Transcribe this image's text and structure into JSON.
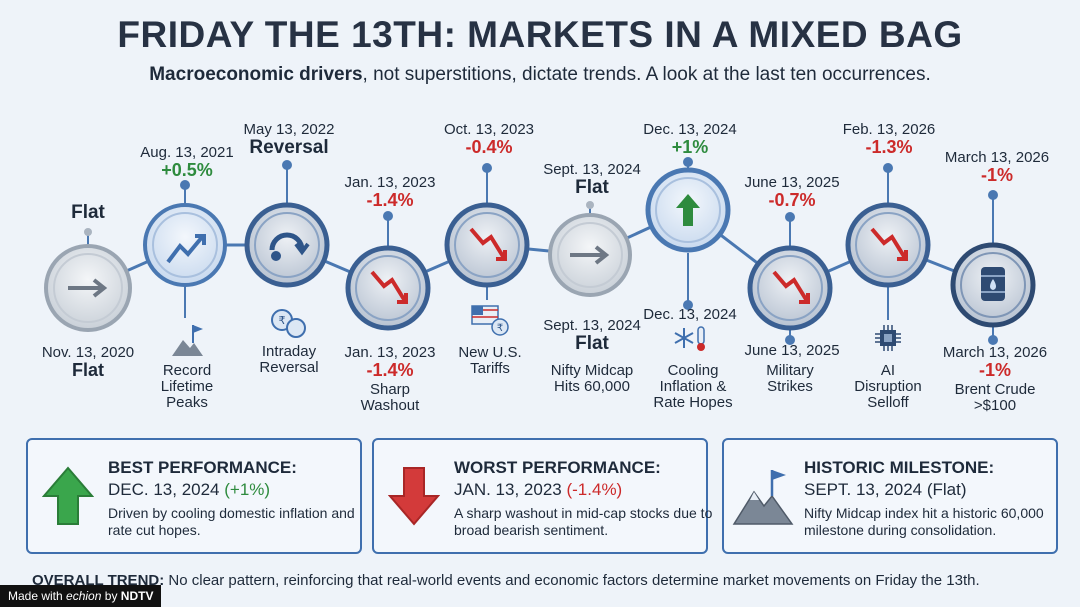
{
  "title": "FRIDAY THE 13TH: MARKETS IN A MIXED BAG",
  "subtitle": {
    "lead": "Macroeconomic drivers",
    "rest": ", not superstitions, dictate trends. A look at the last ten occurrences."
  },
  "colors": {
    "up": "#2e8b3e",
    "down": "#cc2a2a",
    "accent": "#3f6fae",
    "text": "#1e2a3a"
  },
  "events": [
    {
      "top_value": "Flat",
      "bottom_date": "Nov. 13, 2020",
      "bottom_value": "Flat",
      "icon": "right-arrow-icon"
    },
    {
      "top_date": "Aug. 13, 2021",
      "top_value": "+0.5%",
      "description": "Record Lifetime Peaks",
      "icon": "trend-up-icon",
      "desc_icon": "mountain-flag-icon"
    },
    {
      "top_date": "May 13, 2022",
      "top_value": "Reversal",
      "description": "Intraday Reversal",
      "icon": "reversal-icon",
      "desc_icon": "rupee-coins-icon"
    },
    {
      "top_date": "Jan. 13, 2023",
      "top_value": "-1.4%",
      "bottom_date": "Jan. 13, 2023",
      "bottom_value": "-1.4%",
      "description": "Sharp Washout",
      "icon": "trend-down-icon"
    },
    {
      "top_date": "Oct. 13, 2023",
      "top_value": "-0.4%",
      "description": "New U.S. Tariffs",
      "icon": "trend-down-icon",
      "desc_icon": "us-flag-rupee-icon"
    },
    {
      "top_date": "Sept. 13, 2024",
      "top_value": "Flat",
      "bottom_date": "Sept. 13, 2024",
      "bottom_value": "Flat",
      "description": "Nifty Midcap Hits 60,000",
      "icon": "right-arrow-icon"
    },
    {
      "top_date": "Dec. 13, 2024",
      "top_value": "+1%",
      "bottom_date": "Dec. 13, 2024",
      "description": "Cooling Inflation & Rate Hopes",
      "icon": "up-arrow-icon",
      "desc_icon": "snowflake-thermometer-icon"
    },
    {
      "top_date": "June 13, 2025",
      "top_value": "-0.7%",
      "bottom_date": "June 13, 2025",
      "description": "Military Strikes",
      "icon": "trend-down-icon"
    },
    {
      "top_date": "Feb. 13, 2026",
      "top_value": "-1.3%",
      "description": "AI Disruption Selloff",
      "icon": "trend-down-icon",
      "desc_icon": "chip-icon"
    },
    {
      "top_date": "March 13, 2026",
      "top_value": "-1%",
      "bottom_date": "March 13, 2026",
      "bottom_value": "-1%",
      "description": "Brent Crude >$100",
      "icon": "oil-barrel-icon"
    }
  ],
  "cards": [
    {
      "heading": "BEST PERFORMANCE:",
      "date": "DEC. 13, 2024",
      "change": "(+1%)",
      "text": "Driven by cooling domestic inflation and rate cut hopes.",
      "icon": "green-up-arrow-icon"
    },
    {
      "heading": "WORST PERFORMANCE:",
      "date": "JAN. 13, 2023",
      "change": "(-1.4%)",
      "text": "A sharp washout in mid-cap stocks due to broad bearish sentiment.",
      "icon": "red-down-arrow-icon"
    },
    {
      "heading": "HISTORIC MILESTONE:",
      "date": "SEPT. 13, 2024 (Flat)",
      "text": "Nifty Midcap index hit a historic 60,000 milestone during consolidation.",
      "icon": "mountain-flag-icon"
    }
  ],
  "footer": {
    "label": "OVERALL TREND:",
    "text": "No clear pattern, reinforcing that real-world events and economic factors determine market movements on Friday the 13th."
  },
  "badge": {
    "made_with": "Made with",
    "brand": "echion",
    "by": "by",
    "partner": "NDTV"
  }
}
